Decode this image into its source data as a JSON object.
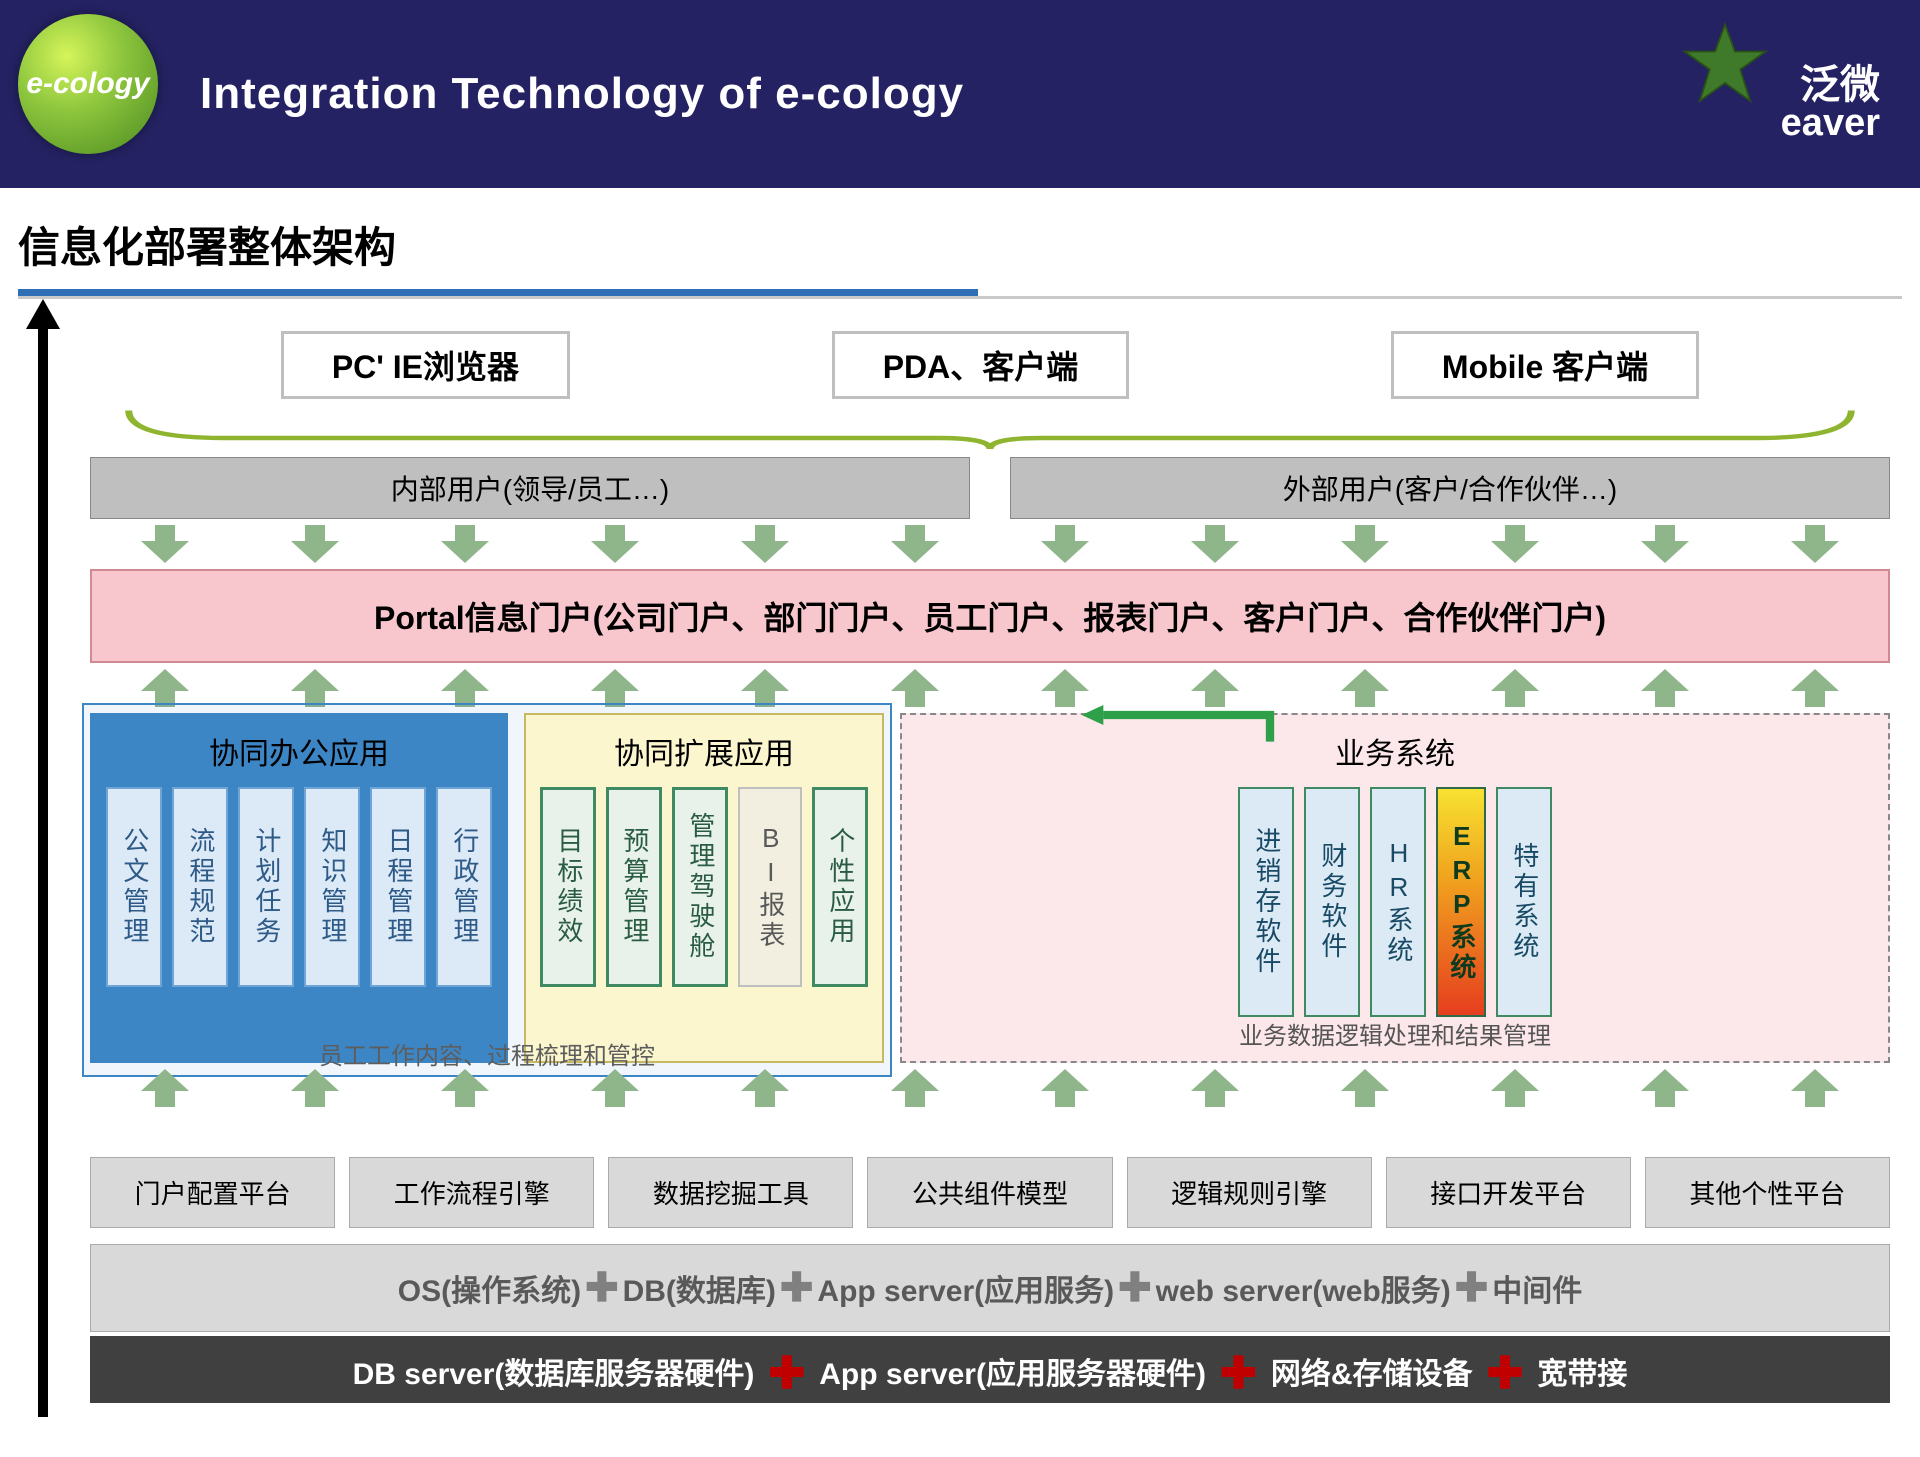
{
  "header": {
    "title": "Integration Technology of e-cology",
    "logo_left": "e-cology",
    "logo_right_cn": "泛微",
    "logo_right_en": "eaver"
  },
  "section_title": "信息化部署整体架构",
  "colors": {
    "header_bg": "#242262",
    "title_underline": "#2f6fb7",
    "arrow_green": "#8fb58a",
    "portal_bg": "#f7c7cd",
    "g1_bg": "#3d86c6",
    "g1_item_bg": "#dce9f7",
    "g2_bg": "#fcf6cf",
    "g2_item_border": "#3f8a63",
    "g3_bg": "#fce7ea",
    "platform_bg": "#d9d9d9",
    "hw_bg": "#404040",
    "hw_plus": "#c00000"
  },
  "clients": [
    "PC' IE浏览器",
    "PDA、客户端",
    "Mobile 客户端"
  ],
  "users": [
    "内部用户(领导/员工…)",
    "外部用户(客户/合作伙伴…)"
  ],
  "portal": "Portal信息门户(公司门户、部门门户、员工门户、报表门户、客户门户、合作伙伴门户)",
  "group1": {
    "title": "协同办公应用",
    "items": [
      "公文管理",
      "流程规范",
      "计划任务",
      "知识管理",
      "日程管理",
      "行政管理"
    ]
  },
  "group2": {
    "title": "协同扩展应用",
    "items": [
      "目标绩效",
      "预算管理",
      "管理驾驶舱",
      "BI报表",
      "个性应用"
    ],
    "bi_index": 3
  },
  "group12_caption": "员工工作内容、过程梳理和管控",
  "group3": {
    "title": "业务系统",
    "items": [
      "进销存软件",
      "财务软件",
      "HR系统",
      "ERP系统",
      "特有系统"
    ],
    "erp_index": 3,
    "caption": "业务数据逻辑处理和结果管理"
  },
  "platforms": [
    "门户配置平台",
    "工作流程引擎",
    "数据挖掘工具",
    "公共组件模型",
    "逻辑规则引擎",
    "接口开发平台",
    "其他个性平台"
  ],
  "os_row": {
    "parts": [
      "OS(操作系统)",
      "DB(数据库)",
      "App server(应用服务)",
      "web server(web服务)",
      "中间件"
    ]
  },
  "hw_row": {
    "parts": [
      "DB server(数据库服务器硬件)",
      "App server(应用服务器硬件)",
      "网络&存储设备",
      "宽带接"
    ]
  },
  "arrow_counts": {
    "row1_down": 12,
    "row2_up": 12,
    "row3_up": 12
  }
}
